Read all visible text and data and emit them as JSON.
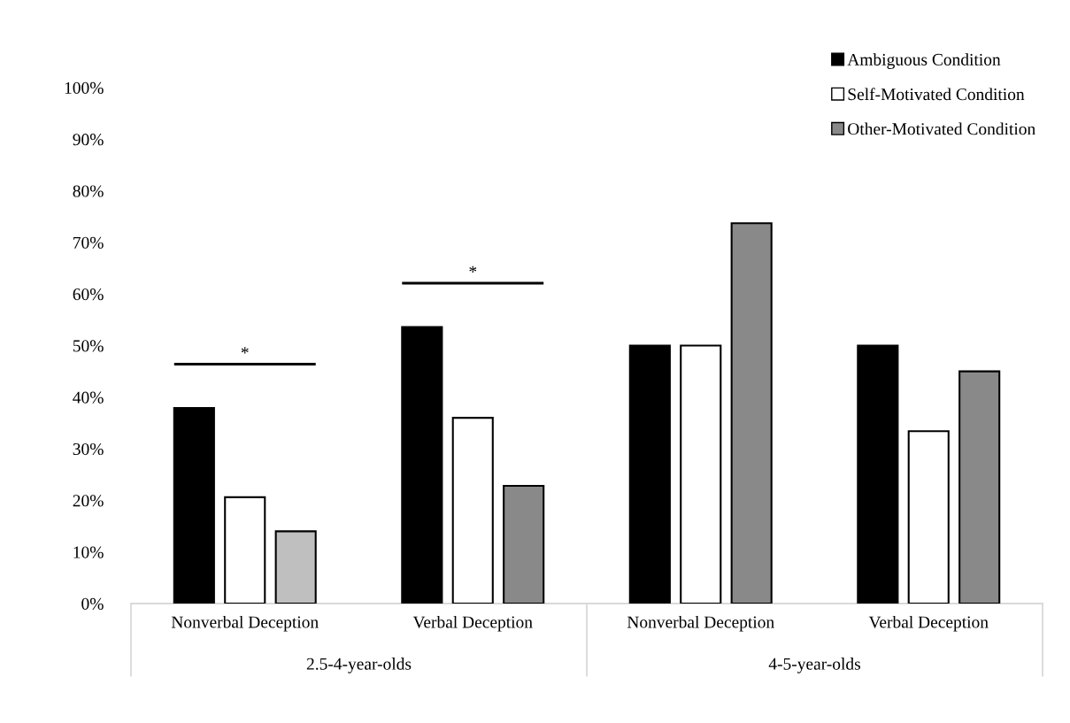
{
  "chart_data": {
    "type": "bar",
    "categories": [
      "Nonverbal Deception",
      "Verbal Deception",
      "Nonverbal Deception",
      "Verbal Deception"
    ],
    "series": [
      {
        "name": "Ambiguous Condition",
        "color": "#000000",
        "values": [
          37.9,
          53.6,
          50.0,
          50.0
        ]
      },
      {
        "name": "Self-Motivated Condition",
        "color": "#ffffff",
        "values": [
          20.6,
          36.0,
          50.0,
          33.4
        ]
      },
      {
        "name": "Other-Motivated Condition",
        "color": "#898989",
        "colors": [
          "#bfbfbf",
          "#898989",
          "#898989",
          "#898989"
        ],
        "values": [
          14.0,
          22.8,
          73.7,
          45.0
        ]
      }
    ],
    "ylim": [
      0,
      100
    ],
    "yticks": [
      {
        "value": 0,
        "label": "0%"
      },
      {
        "value": 10,
        "label": "10%"
      },
      {
        "value": 20,
        "label": "20%"
      },
      {
        "value": 30,
        "label": "30%"
      },
      {
        "value": 40,
        "label": "40%"
      },
      {
        "value": 50,
        "label": "50%"
      },
      {
        "value": 60,
        "label": "60%"
      },
      {
        "value": 70,
        "label": "70%"
      },
      {
        "value": 80,
        "label": "80%"
      },
      {
        "value": 90,
        "label": "90%"
      },
      {
        "value": 100,
        "label": "100%"
      }
    ],
    "annotations": [
      "2.5-4-year-olds",
      "4-5-year-olds",
      "*",
      "*"
    ],
    "grid": false,
    "legend": "top right"
  }
}
